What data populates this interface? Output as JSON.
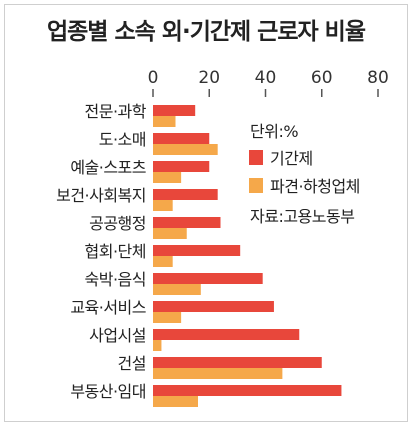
{
  "chart_data": {
    "type": "bar",
    "title": "업종별 소속 외·기간제 근로자 비율",
    "categories": [
      "전문·과학",
      "도·소매",
      "예술·스포츠",
      "보건·사회복지",
      "공공행정",
      "협회·단체",
      "숙박·음식",
      "교육·서비스",
      "사업시설",
      "건설",
      "부동산·임대"
    ],
    "series": [
      {
        "name": "기간제",
        "color": "#e8473b",
        "values": [
          15,
          20,
          20,
          23,
          24,
          31,
          39,
          43,
          52,
          60,
          67
        ]
      },
      {
        "name": "파견·하청업체",
        "color": "#f5a84a",
        "values": [
          8,
          23,
          10,
          7,
          12,
          7,
          17,
          10,
          3,
          46,
          16
        ]
      }
    ],
    "xticks": [
      0,
      20,
      40,
      60,
      80
    ],
    "xlim": [
      0,
      80
    ],
    "unit_label": "단위:%",
    "source_label": "자료:고용노동부",
    "legend_position": "right"
  }
}
